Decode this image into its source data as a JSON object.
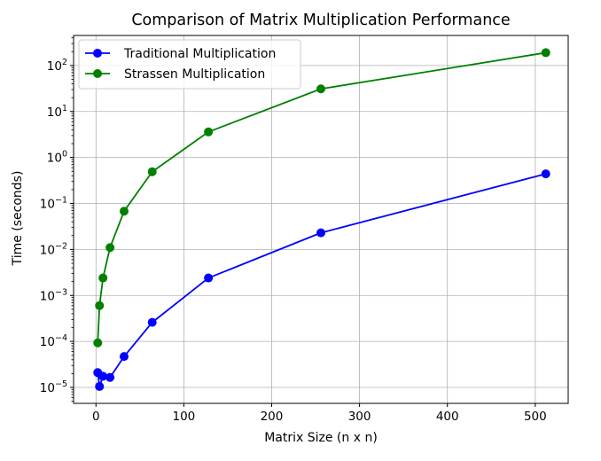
{
  "chart_data": {
    "type": "line",
    "title": "Comparison of Matrix Multiplication Performance",
    "xlabel": "Matrix Size (n x n)",
    "ylabel": "Time (seconds)",
    "xscale": "linear",
    "yscale": "log",
    "xlim": [
      -25.5,
      537.5
    ],
    "ylim": [
      4.5e-06,
      450
    ],
    "grid": true,
    "legend_position": "top-left",
    "x_ticks": [
      0,
      100,
      200,
      300,
      400,
      500
    ],
    "y_ticks": [
      {
        "value": 1e-05,
        "base": "10",
        "exp": "−5"
      },
      {
        "value": 0.0001,
        "base": "10",
        "exp": "−4"
      },
      {
        "value": 0.001,
        "base": "10",
        "exp": "−3"
      },
      {
        "value": 0.01,
        "base": "10",
        "exp": "−2"
      },
      {
        "value": 0.1,
        "base": "10",
        "exp": "−1"
      },
      {
        "value": 1.0,
        "base": "10",
        "exp": "0"
      },
      {
        "value": 10.0,
        "base": "10",
        "exp": "1"
      },
      {
        "value": 100.0,
        "base": "10",
        "exp": "2"
      }
    ],
    "x": [
      2,
      4,
      8,
      16,
      32,
      64,
      128,
      256,
      512
    ],
    "series": [
      {
        "name": "Traditional Multiplication",
        "color": "#0000ff",
        "values": [
          2.1e-05,
          1.05e-05,
          1.75e-05,
          1.65e-05,
          4.7e-05,
          0.00026,
          0.0024,
          0.023,
          0.44
        ]
      },
      {
        "name": "Strassen Multiplication",
        "color": "#008000",
        "values": [
          9.3e-05,
          0.0006,
          0.0024,
          0.011,
          0.068,
          0.49,
          3.6,
          31,
          190
        ]
      }
    ]
  }
}
